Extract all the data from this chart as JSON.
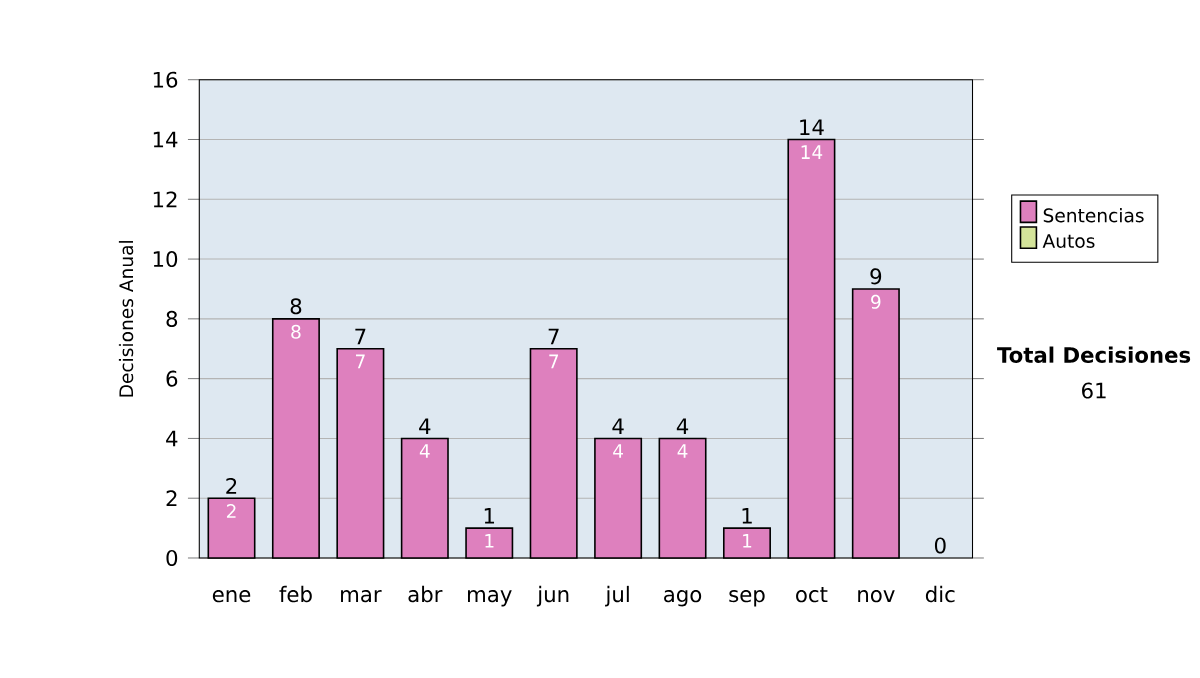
{
  "chart_data": {
    "type": "bar",
    "stacked": true,
    "ylabel": "Decisiones Anual",
    "categories": [
      "ene",
      "feb",
      "mar",
      "abr",
      "may",
      "jun",
      "jul",
      "ago",
      "sep",
      "oct",
      "nov",
      "dic"
    ],
    "series": [
      {
        "name": "Sentencias",
        "color": "#de80be",
        "values": [
          2,
          8,
          7,
          4,
          1,
          7,
          4,
          4,
          1,
          14,
          9,
          0
        ],
        "value_labels": [
          "2",
          "8",
          "7",
          "4",
          "1",
          "7",
          "4",
          "4",
          "1",
          "14",
          "9",
          null
        ]
      },
      {
        "name": "Autos",
        "color": "#d4e49a",
        "values": [
          0,
          0,
          0,
          0,
          0,
          0,
          0,
          0,
          0,
          0,
          0,
          0
        ]
      }
    ],
    "totals": [
      "2",
      "8",
      "7",
      "4",
      "1",
      "7",
      "4",
      "4",
      "1",
      "14",
      "9",
      "0"
    ],
    "ylim": [
      0,
      16
    ],
    "yticks": [
      0,
      2,
      4,
      6,
      8,
      10,
      12,
      14,
      16
    ],
    "grid": "y",
    "legend": "right",
    "annotations": [
      "Total Decisiones",
      "61"
    ]
  }
}
